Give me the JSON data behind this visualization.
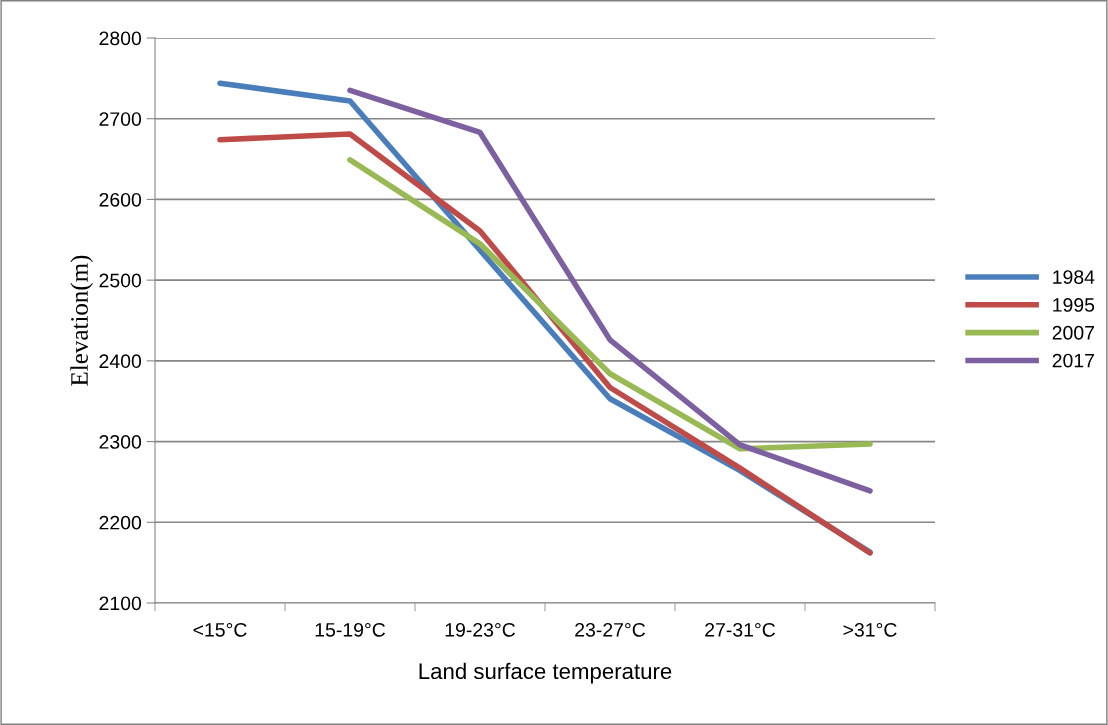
{
  "chart_data": {
    "type": "line",
    "xlabel": "Land surface temperature",
    "ylabel": "Elevation(m)",
    "categories": [
      "<15°C",
      "15-19°C",
      "19-23°C",
      "23-27°C",
      "27-31°C",
      ">31°C"
    ],
    "series": [
      {
        "name": "1984",
        "color": "#4a7ebb",
        "values": [
          2744,
          2722,
          2537,
          2353,
          2264,
          2163
        ]
      },
      {
        "name": "1995",
        "color": "#be4b48",
        "values": [
          2674,
          2681,
          2561,
          2367,
          2267,
          2162
        ]
      },
      {
        "name": "2007",
        "color": "#98b954",
        "values": [
          null,
          2649,
          2545,
          2384,
          2291,
          2297
        ]
      },
      {
        "name": "2017",
        "color": "#7d60a0",
        "values": [
          null,
          2735,
          2683,
          2426,
          2296,
          2239
        ]
      }
    ],
    "ylim": [
      2100,
      2800
    ],
    "yticks": [
      2100,
      2200,
      2300,
      2400,
      2500,
      2600,
      2700,
      2800
    ],
    "grid": "y",
    "legend": "right",
    "marker": "none",
    "line_style": "solid"
  }
}
